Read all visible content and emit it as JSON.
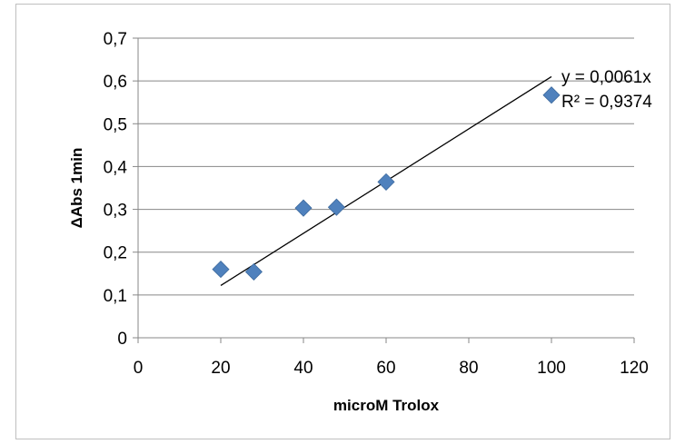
{
  "chart_data": {
    "type": "scatter",
    "title": "",
    "xlabel": "microM Trolox",
    "ylabel": "ΔAbs 1min",
    "xlim": [
      0,
      120
    ],
    "ylim": [
      0,
      0.7
    ],
    "x_ticks": [
      0,
      20,
      40,
      60,
      80,
      100,
      120
    ],
    "x_tick_labels": [
      "0",
      "20",
      "40",
      "60",
      "80",
      "100",
      "120"
    ],
    "y_ticks": [
      0,
      0.1,
      0.2,
      0.3,
      0.4,
      0.5,
      0.6,
      0.7
    ],
    "y_tick_labels": [
      "0",
      "0,1",
      "0,2",
      "0,3",
      "0,4",
      "0,5",
      "0,6",
      "0,7"
    ],
    "grid": "horizontal",
    "legend": "none",
    "marker": "diamond",
    "marker_color": "#4f81bd",
    "series": [
      {
        "x": [
          20,
          28,
          40,
          48,
          60,
          100
        ],
        "y": [
          0.16,
          0.154,
          0.303,
          0.305,
          0.364,
          0.567
        ]
      }
    ],
    "trendline": {
      "type": "linear",
      "slope": 0.0061,
      "x_range": [
        20,
        100
      ],
      "equation": "y = 0,0061x",
      "r_squared": "R² = 0,9374"
    }
  }
}
